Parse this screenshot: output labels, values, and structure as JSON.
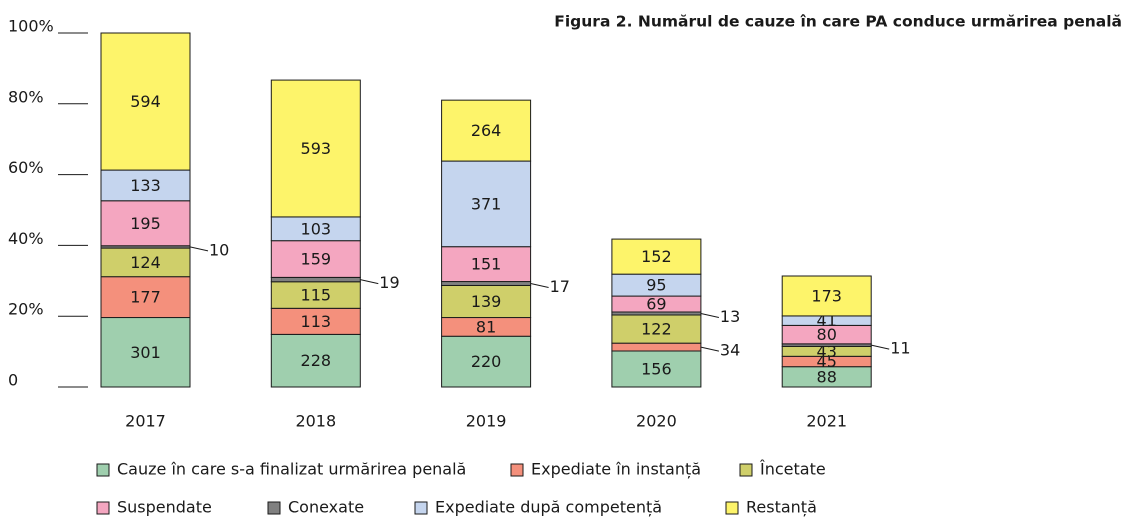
{
  "chart_data": {
    "type": "stacked_bar",
    "title": "Figura 2. Numărul de cauze în care PA conduce urmărirea penală",
    "categories": [
      "2017",
      "2018",
      "2019",
      "2020",
      "2021"
    ],
    "series": [
      {
        "name": "Cauze în care s-a finalizat urmărirea penală",
        "color": "#9fcfae",
        "values": [
          301,
          228,
          220,
          156,
          88
        ]
      },
      {
        "name": "Expediate în instanță",
        "color": "#f4907c",
        "values": [
          177,
          113,
          81,
          34,
          45
        ]
      },
      {
        "name": "Încetate",
        "color": "#cfcf6a",
        "values": [
          124,
          115,
          139,
          122,
          43
        ]
      },
      {
        "name": "Conexate",
        "color": "#808080",
        "values": [
          10,
          19,
          17,
          13,
          11
        ]
      },
      {
        "name": "Suspendate",
        "color": "#f4a6c0",
        "values": [
          195,
          159,
          151,
          69,
          80
        ]
      },
      {
        "name": "Expediate după competență",
        "color": "#c5d5ee",
        "values": [
          133,
          103,
          371,
          95,
          41
        ]
      },
      {
        "name": "Restanță",
        "color": "#fdf46a",
        "values": [
          594,
          593,
          264,
          152,
          173
        ]
      }
    ],
    "ylim": [
      0,
      1534
    ],
    "yticks": [
      {
        "value": 0,
        "label": "0"
      },
      {
        "value": 306.8,
        "label": "20%"
      },
      {
        "value": 613.6,
        "label": "40%"
      },
      {
        "value": 920.4,
        "label": "60%"
      },
      {
        "value": 1227.2,
        "label": "80%"
      },
      {
        "value": 1534,
        "label": "100%"
      }
    ]
  }
}
